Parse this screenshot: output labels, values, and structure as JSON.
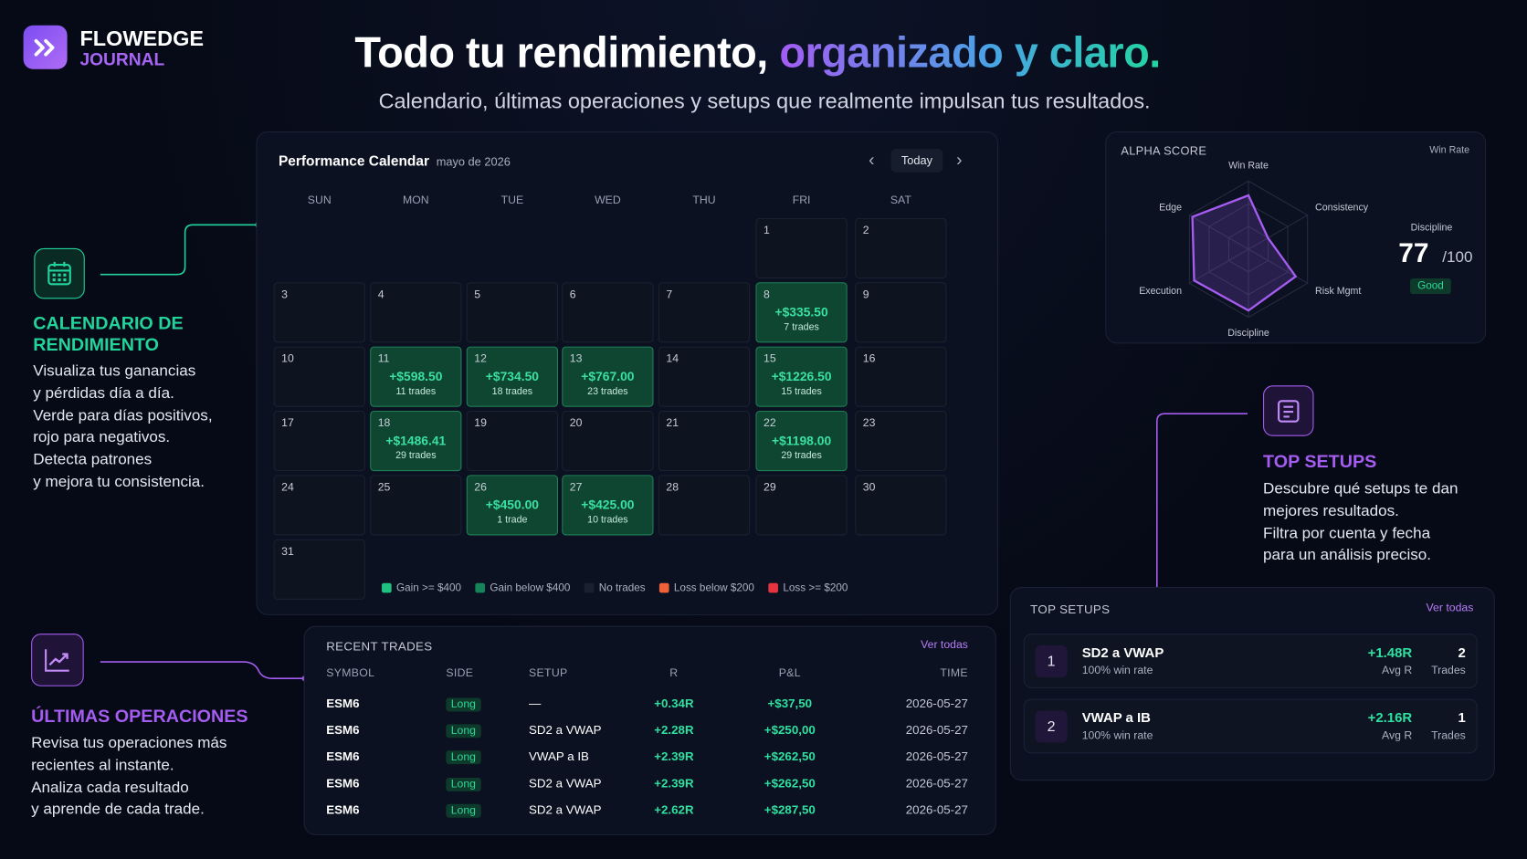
{
  "header": {
    "brand": "FLOWEDGE",
    "brand_sub": "JOURNAL",
    "title_start": "Todo tu rendimiento,",
    "title_highlight": "organizado y claro.",
    "subtitle": "Calendario, últimas operaciones y setups que realmente impulsan tus resultados."
  },
  "features": [
    {
      "title_lines": [
        "CALENDARIO DE",
        "RENDIMIENTO"
      ],
      "lines": [
        "Visualiza tus ganancias",
        "y pérdidas día a día.",
        "Verde para días positivos,",
        "rojo para negativos.",
        "Detecta patrones",
        "y mejora tu consistencia."
      ]
    },
    {
      "title_lines": [
        "ÚLTIMAS OPERACIONES"
      ],
      "lines": [
        "Revisa tus operaciones más",
        "recientes al instante.",
        "Analiza cada resultado",
        "y aprende de cada trade."
      ]
    },
    {
      "title_lines": [
        "TOP SETUPS"
      ],
      "lines": [
        "Descubre qué setups te dan",
        "mejores resultados.",
        "Filtra por cuenta y fecha",
        "para un análisis preciso."
      ]
    }
  ],
  "calendar": {
    "title": "Performance Calendar",
    "month": "mayo de 2026",
    "today": "Today",
    "weekdays": [
      "SUN",
      "MON",
      "TUE",
      "WED",
      "THU",
      "FRI",
      "SAT"
    ],
    "cells": [
      null,
      null,
      null,
      null,
      null,
      {
        "day": 1
      },
      {
        "day": 2
      },
      {
        "day": 3
      },
      {
        "day": 4
      },
      {
        "day": 5
      },
      {
        "day": 6
      },
      {
        "day": 7
      },
      {
        "day": 8,
        "pnl": "+$335.50",
        "trades": "7 trades"
      },
      {
        "day": 9
      },
      {
        "day": 10
      },
      {
        "day": 11,
        "pnl": "+$598.50",
        "trades": "11 trades"
      },
      {
        "day": 12,
        "pnl": "+$734.50",
        "trades": "18 trades"
      },
      {
        "day": 13,
        "pnl": "+$767.00",
        "trades": "23 trades"
      },
      {
        "day": 14
      },
      {
        "day": 15,
        "pnl": "+$1226.50",
        "trades": "15 trades"
      },
      {
        "day": 16
      },
      {
        "day": 17
      },
      {
        "day": 18,
        "pnl": "+$1486.41",
        "trades": "29 trades"
      },
      {
        "day": 19
      },
      {
        "day": 20
      },
      {
        "day": 21
      },
      {
        "day": 22,
        "pnl": "+$1198.00",
        "trades": "29 trades"
      },
      {
        "day": 23
      },
      {
        "day": 24
      },
      {
        "day": 25
      },
      {
        "day": 26,
        "pnl": "+$450.00",
        "trades": "1 trade"
      },
      {
        "day": 27,
        "pnl": "+$425.00",
        "trades": "10 trades"
      },
      {
        "day": 28
      },
      {
        "day": 29
      },
      {
        "day": 30
      },
      {
        "day": 31
      }
    ],
    "legend": [
      {
        "label": "Gain >= $400",
        "color": "#20c07f"
      },
      {
        "label": "Gain below $400",
        "color": "#16845a"
      },
      {
        "label": "No trades",
        "color": "#1a2030"
      },
      {
        "label": "Loss below $200",
        "color": "#f0613a"
      },
      {
        "label": "Loss >= $200",
        "color": "#e5343f"
      }
    ]
  },
  "recent_trades": {
    "title": "RECENT TRADES",
    "link": "Ver todas",
    "columns": [
      "SYMBOL",
      "SIDE",
      "SETUP",
      "R",
      "P&L",
      "TIME"
    ],
    "rows": [
      [
        "ESM6",
        "Long",
        "—",
        "+0.34R",
        "+$37,50",
        "2026-05-27"
      ],
      [
        "ESM6",
        "Long",
        "SD2 a VWAP",
        "+2.28R",
        "+$250,00",
        "2026-05-27"
      ],
      [
        "ESM6",
        "Long",
        "VWAP a IB",
        "+2.39R",
        "+$262,50",
        "2026-05-27"
      ],
      [
        "ESM6",
        "Long",
        "SD2 a VWAP",
        "+2.39R",
        "+$262,50",
        "2026-05-27"
      ],
      [
        "ESM6",
        "Long",
        "SD2 a VWAP",
        "+2.62R",
        "+$287,50",
        "2026-05-27"
      ]
    ]
  },
  "alpha_score": {
    "title": "ALPHA SCORE",
    "selector": "Win Rate",
    "axes": [
      "Win Rate",
      "Consistency",
      "Risk Mgmt",
      "Discipline",
      "Execution",
      "Edge"
    ],
    "values": [
      79,
      33,
      80,
      90,
      92,
      95
    ],
    "rlim": [
      0,
      100
    ],
    "score_label": "Discipline",
    "score": 77,
    "score_max": "/100",
    "grade": "Good"
  },
  "top_setups": {
    "title": "TOP SETUPS",
    "link": "Ver todas",
    "items": [
      {
        "rank": 1,
        "name": "SD2 a VWAP",
        "sub": "100% win rate",
        "r": "+1.48R",
        "r_label": "Avg R",
        "trades": 2,
        "trades_label": "Trades"
      },
      {
        "rank": 2,
        "name": "VWAP a IB",
        "sub": "100% win rate",
        "r": "+2.16R",
        "r_label": "Avg R",
        "trades": 1,
        "trades_label": "Trades"
      }
    ]
  }
}
